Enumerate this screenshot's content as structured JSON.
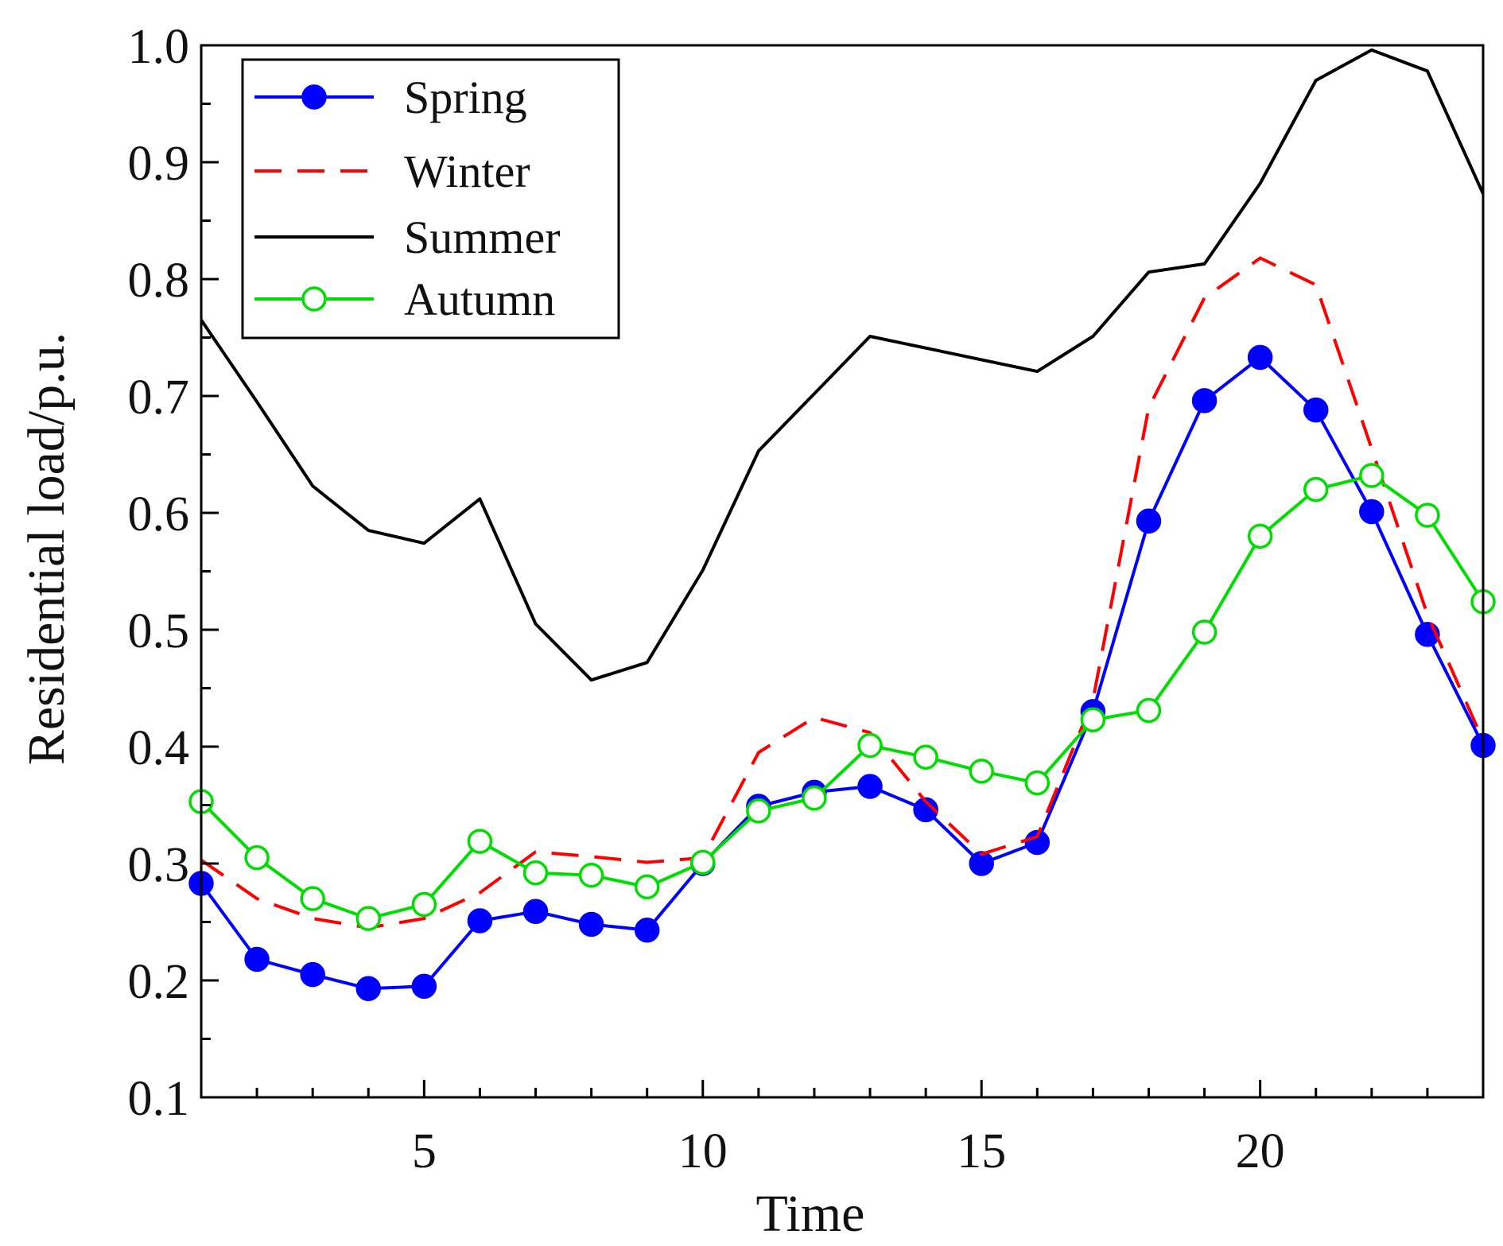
{
  "chart_data": {
    "type": "line",
    "title": "",
    "xlabel": "Time",
    "ylabel": "Residential load/p.u.",
    "xlim": [
      1,
      24
    ],
    "ylim": [
      0.1,
      1.0
    ],
    "grid": false,
    "legend_position": "top-left",
    "x_ticks": [
      "5",
      "10",
      "15",
      "20"
    ],
    "x_tick_values": [
      5,
      10,
      15,
      20
    ],
    "y_ticks": [
      "0.1",
      "0.2",
      "0.3",
      "0.4",
      "0.5",
      "0.6",
      "0.7",
      "0.8",
      "0.9",
      "1.0"
    ],
    "y_tick_values": [
      0.1,
      0.2,
      0.3,
      0.4,
      0.5,
      0.6,
      0.7,
      0.8,
      0.9,
      1.0
    ],
    "x": [
      1,
      2,
      3,
      4,
      5,
      6,
      7,
      8,
      9,
      10,
      11,
      12,
      13,
      14,
      15,
      16,
      17,
      18,
      19,
      20,
      21,
      22,
      23,
      24
    ],
    "series": [
      {
        "name": "Spring",
        "color": "#0000ff",
        "line_style": "solid",
        "marker": "filled-circle",
        "values": [
          0.283,
          0.218,
          0.205,
          0.193,
          0.195,
          0.251,
          0.259,
          0.248,
          0.243,
          0.3,
          0.349,
          0.361,
          0.366,
          0.346,
          0.3,
          0.318,
          0.43,
          0.593,
          0.696,
          0.733,
          0.688,
          0.601,
          0.496,
          0.401
        ]
      },
      {
        "name": "Winter",
        "color": "#ff0000",
        "line_style": "dashed",
        "marker": "none",
        "values": [
          0.303,
          0.27,
          0.253,
          0.245,
          0.253,
          0.275,
          0.31,
          0.306,
          0.301,
          0.305,
          0.395,
          0.425,
          0.412,
          0.353,
          0.308,
          0.323,
          0.44,
          0.69,
          0.784,
          0.818,
          0.795,
          0.655,
          0.513,
          0.405
        ]
      },
      {
        "name": "Summer",
        "color": "#000000",
        "line_style": "solid",
        "marker": "none",
        "values": [
          0.765,
          0.695,
          0.623,
          0.585,
          0.574,
          0.612,
          0.505,
          0.457,
          0.472,
          0.551,
          0.653,
          0.702,
          0.751,
          0.741,
          0.731,
          0.721,
          0.751,
          0.806,
          0.813,
          0.882,
          0.97,
          0.996,
          0.978,
          0.873
        ]
      },
      {
        "name": "Autumn",
        "color": "#00dd00",
        "line_style": "solid",
        "marker": "open-circle",
        "values": [
          0.353,
          0.305,
          0.27,
          0.253,
          0.265,
          0.319,
          0.292,
          0.29,
          0.28,
          0.301,
          0.345,
          0.356,
          0.401,
          0.391,
          0.379,
          0.369,
          0.423,
          0.431,
          0.498,
          0.58,
          0.62,
          0.632,
          0.598,
          0.524
        ]
      }
    ]
  }
}
